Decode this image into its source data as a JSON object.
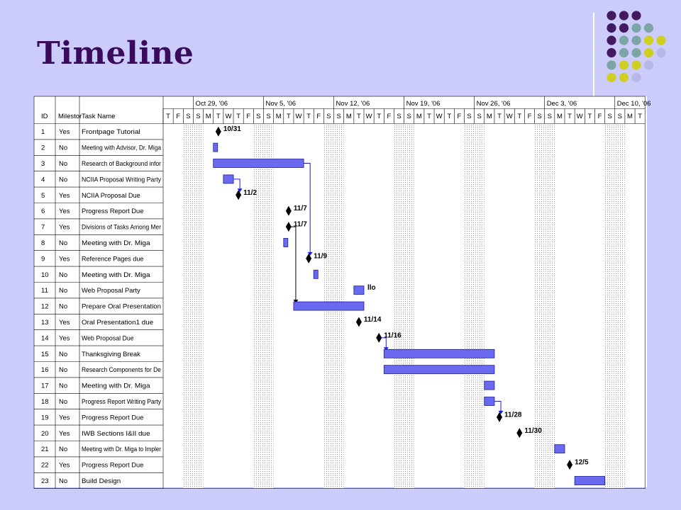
{
  "title": "Timeline",
  "colors": {
    "background": "#ccccfa",
    "title": "#3a0a5c",
    "bar": "#6a6af0",
    "bar_border": "#1c1c9a",
    "arrow": "#1d1de0",
    "dot_purple": "#43195f",
    "dot_teal": "#7ea5a5",
    "dot_yellow": "#cfcf22",
    "dot_lilac": "#b8b8e6"
  },
  "decor_dots": [
    [
      "dot_purple",
      "dot_purple",
      "dot_purple"
    ],
    [
      "dot_purple",
      "dot_purple",
      "dot_teal",
      "dot_teal"
    ],
    [
      "dot_purple",
      "dot_teal",
      "dot_teal",
      "dot_yellow",
      "dot_yellow"
    ],
    [
      "dot_purple",
      "dot_teal",
      "dot_teal",
      "dot_yellow",
      "dot_lilac"
    ],
    [
      "dot_teal",
      "dot_yellow",
      "dot_yellow",
      "dot_lilac"
    ],
    [
      "dot_yellow",
      "dot_yellow",
      "dot_lilac"
    ]
  ],
  "chart_data": {
    "type": "table",
    "columns": [
      "ID",
      "Milestor",
      "Task Name"
    ],
    "weeks": [
      "Oct 29, '06",
      "Nov 5, '06",
      "Nov 12, '06",
      "Nov 19, '06",
      "Nov 26, '06",
      "Dec 3, '06",
      "Dec 10, '06"
    ],
    "day_letters": [
      "T",
      "F",
      "S",
      "S",
      "M",
      "T",
      "W",
      "T",
      "F",
      "S",
      "S",
      "M",
      "T",
      "W",
      "T",
      "F",
      "S",
      "S",
      "M",
      "T",
      "W",
      "T",
      "F",
      "S",
      "S",
      "M",
      "T",
      "W",
      "T",
      "F",
      "S",
      "S",
      "M",
      "T",
      "W",
      "T",
      "F",
      "S",
      "S",
      "M",
      "T",
      "W",
      "T",
      "F",
      "S",
      "S",
      "M",
      "T"
    ],
    "tasks": [
      {
        "id": "1",
        "milestone": "Yes",
        "name": "Frontpage Tutorial",
        "kind": "milestone",
        "start": 5,
        "label": "10/31"
      },
      {
        "id": "2",
        "milestone": "No",
        "name": "Meeting with Advisor, Dr. Miga",
        "kind": "bar",
        "start": 5,
        "end": 5.4
      },
      {
        "id": "3",
        "milestone": "No",
        "name": "Research of Background infor",
        "kind": "bar",
        "start": 5,
        "end": 14
      },
      {
        "id": "4",
        "milestone": "No",
        "name": "NCIIA Proposal Writing Party",
        "kind": "bar",
        "start": 6,
        "end": 7
      },
      {
        "id": "5",
        "milestone": "Yes",
        "name": "NCIIA Proposal Due",
        "kind": "milestone",
        "start": 7,
        "label": "11/2"
      },
      {
        "id": "6",
        "milestone": "Yes",
        "name": "Progress Report Due",
        "kind": "milestone",
        "start": 12,
        "label": "11/7"
      },
      {
        "id": "7",
        "milestone": "Yes",
        "name": "Divisions of Tasks Among Mer",
        "kind": "milestone",
        "start": 12,
        "label": "11/7"
      },
      {
        "id": "8",
        "milestone": "No",
        "name": "Meeting with Dr. Miga",
        "kind": "bar",
        "start": 12,
        "end": 12.4
      },
      {
        "id": "9",
        "milestone": "Yes",
        "name": "Reference Pages due",
        "kind": "milestone",
        "start": 14,
        "label": "11/9"
      },
      {
        "id": "10",
        "milestone": "No",
        "name": "Meeting with Dr. Miga",
        "kind": "bar",
        "start": 15,
        "end": 15.4
      },
      {
        "id": "11",
        "milestone": "No",
        "name": "Web Proposal Party",
        "kind": "bar",
        "start": 19,
        "end": 20
      },
      {
        "id": "12",
        "milestone": "No",
        "name": "Prepare Oral Presentation",
        "kind": "bar",
        "start": 13,
        "end": 20
      },
      {
        "id": "13",
        "milestone": "Yes",
        "name": "Oral Presentation1 due",
        "kind": "milestone",
        "start": 19,
        "label": "11/14"
      },
      {
        "id": "14",
        "milestone": "Yes",
        "name": "Web Proposal Due",
        "kind": "milestone",
        "start": 21,
        "label": "11/16"
      },
      {
        "id": "15",
        "milestone": "No",
        "name": "Thanksgiving Break",
        "kind": "bar",
        "start": 22,
        "end": 33
      },
      {
        "id": "16",
        "milestone": "No",
        "name": "Research Components for De",
        "kind": "bar",
        "start": 22,
        "end": 33
      },
      {
        "id": "17",
        "milestone": "No",
        "name": "Meeting with Dr. Miga",
        "kind": "bar",
        "start": 32,
        "end": 33
      },
      {
        "id": "18",
        "milestone": "No",
        "name": "Progress Report Writing Party",
        "kind": "bar",
        "start": 32,
        "end": 33
      },
      {
        "id": "19",
        "milestone": "Yes",
        "name": "Progress Report Due",
        "kind": "milestone",
        "start": 33,
        "label": "11/28"
      },
      {
        "id": "20",
        "milestone": "Yes",
        "name": "IWB Sections I&II due",
        "kind": "milestone",
        "start": 35,
        "label": "11/30"
      },
      {
        "id": "21",
        "milestone": "No",
        "name": "Meeting with Dr. Miga to Impler",
        "kind": "bar",
        "start": 39,
        "end": 40
      },
      {
        "id": "22",
        "milestone": "Yes",
        "name": "Progress Report Due",
        "kind": "milestone",
        "start": 40,
        "label": "12/5"
      },
      {
        "id": "23",
        "milestone": "No",
        "name": "Build Design",
        "kind": "bar",
        "start": 41,
        "end": 44
      }
    ],
    "stub_label": {
      "row": 11,
      "text": "llo"
    },
    "links": [
      {
        "from": 4,
        "to": 5
      },
      {
        "from": 3,
        "to": 9
      },
      {
        "from": 7,
        "to": 12
      },
      {
        "from": 14,
        "to": 15
      },
      {
        "from": 18,
        "to": 19
      }
    ]
  }
}
